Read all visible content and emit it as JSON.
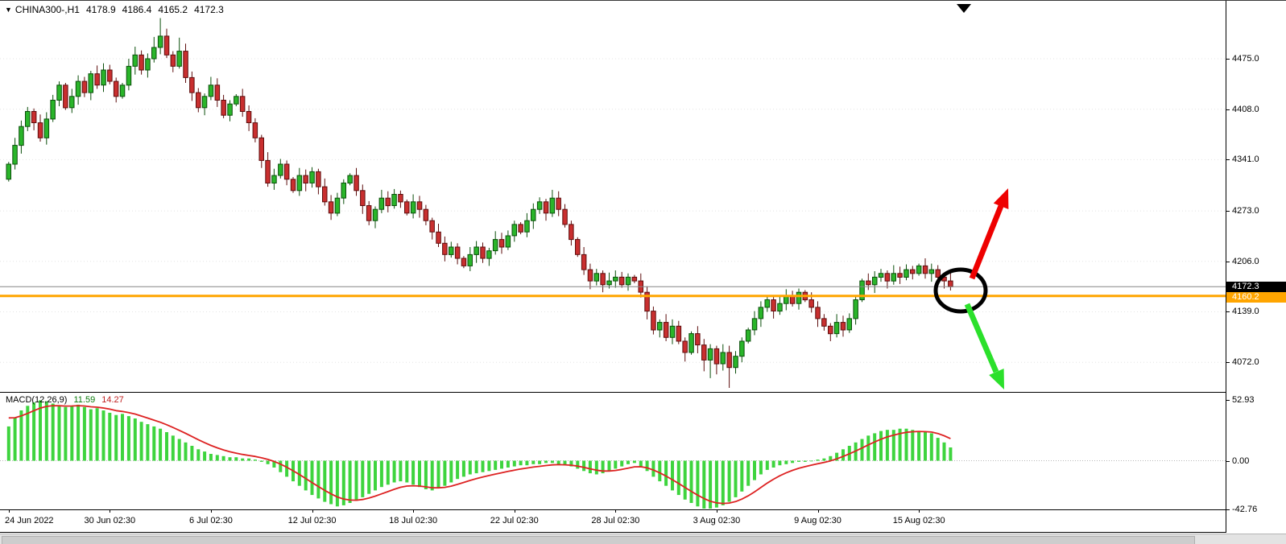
{
  "icons": {
    "dropdown": "▼",
    "scroll_anchor": "triangle-down"
  },
  "header": {
    "symbol": "CHINA300-,H1",
    "open": "4178.9",
    "high": "4186.4",
    "low": "4165.2",
    "close": "4172.3"
  },
  "price_axis": {
    "ticks": [
      "4475.0",
      "4408.0",
      "4341.0",
      "4273.0",
      "4206.0",
      "4139.0",
      "4072.0"
    ],
    "current_badge": "4172.3",
    "orange_badge": "4160.2"
  },
  "time_axis": {
    "labels": [
      "24 Jun 2022",
      "30 Jun 02:30",
      "6 Jul 02:30",
      "12 Jul 02:30",
      "18 Jul 02:30",
      "22 Jul 02:30",
      "28 Jul 02:30",
      "3 Aug 02:30",
      "9 Aug 02:30",
      "15 Aug 02:30"
    ]
  },
  "macd_panel": {
    "label": "MACD(12,26,9)",
    "macd_value": "11.59",
    "signal_value": "14.27",
    "ticks": [
      "52.93",
      "0.00",
      "-42.76"
    ]
  },
  "colors": {
    "bull_fill": "#2ab52a",
    "bull_stroke": "#0b4f0b",
    "bear_fill": "#c92f2f",
    "bear_stroke": "#5e0e0e",
    "macd_histogram": "#3ed43e",
    "macd_signal": "#dd2222",
    "orange_line": "#ffa500",
    "current_price_line": "#858585",
    "badge_current_bg": "#000000",
    "badge_current_text": "#ffffff",
    "badge_orange_bg": "#ffa500",
    "badge_orange_text": "#ffffff",
    "arrow_up": "#ee0000",
    "arrow_down": "#2be02b",
    "annotation_circle": "#000000",
    "grid": "#e4e4e4"
  },
  "chart_data": {
    "type": "candlestick",
    "title": "CHINA300-,H1",
    "timeframe": "H1",
    "header_ohlc": {
      "open": 4178.9,
      "high": 4186.4,
      "low": 4165.2,
      "close": 4172.3
    },
    "current_price": 4172.3,
    "horizontal_line_price": 4160.2,
    "y_axis_ticks": [
      4475.0,
      4408.0,
      4341.0,
      4273.0,
      4206.0,
      4139.0,
      4072.0
    ],
    "x_labels": [
      "24 Jun 2022",
      "30 Jun 02:30",
      "6 Jul 02:30",
      "12 Jul 02:30",
      "18 Jul 02:30",
      "22 Jul 02:30",
      "28 Jul 02:30",
      "3 Aug 02:30",
      "9 Aug 02:30",
      "15 Aug 02:30"
    ],
    "candles_per_x_label": 16,
    "closes": [
      4335,
      4360,
      4385,
      4405,
      4390,
      4370,
      4395,
      4420,
      4440,
      4410,
      4425,
      4445,
      4430,
      4455,
      4440,
      4460,
      4445,
      4425,
      4440,
      4465,
      4480,
      4460,
      4475,
      4490,
      4505,
      4480,
      4465,
      4485,
      4450,
      4430,
      4410,
      4425,
      4440,
      4420,
      4400,
      4415,
      4425,
      4405,
      4390,
      4370,
      4340,
      4310,
      4320,
      4335,
      4315,
      4300,
      4320,
      4310,
      4325,
      4305,
      4285,
      4270,
      4290,
      4310,
      4320,
      4300,
      4280,
      4260,
      4275,
      4290,
      4280,
      4295,
      4285,
      4270,
      4285,
      4275,
      4260,
      4245,
      4230,
      4215,
      4225,
      4210,
      4200,
      4215,
      4225,
      4210,
      4220,
      4235,
      4225,
      4240,
      4255,
      4245,
      4260,
      4275,
      4285,
      4270,
      4290,
      4275,
      4255,
      4235,
      4215,
      4195,
      4180,
      4190,
      4175,
      4180,
      4185,
      4175,
      4185,
      4180,
      4165,
      4140,
      4115,
      4125,
      4105,
      4120,
      4100,
      4085,
      4110,
      4095,
      4075,
      4090,
      4070,
      4085,
      4065,
      4080,
      4100,
      4115,
      4130,
      4145,
      4155,
      4140,
      4150,
      4160,
      4150,
      4165,
      4155,
      4145,
      4130,
      4120,
      4110,
      4125,
      4115,
      4130,
      4155,
      4180,
      4175,
      4185,
      4190,
      4180,
      4190,
      4185,
      4195,
      4190,
      4200,
      4190,
      4195,
      4185,
      4180,
      4172.3
    ],
    "annotations": [
      {
        "type": "ellipse",
        "meaning": "highlight-current-price-area",
        "color": "#000000"
      },
      {
        "type": "arrow",
        "direction": "up",
        "color": "#ee0000"
      },
      {
        "type": "arrow",
        "direction": "down",
        "color": "#2be02b"
      }
    ],
    "indicator": {
      "name": "MACD(12,26,9)",
      "macd_value": 11.59,
      "signal_value": 14.27,
      "y_ticks": [
        52.93,
        0.0,
        -42.76
      ],
      "histogram": [
        30,
        38,
        44,
        48,
        51,
        52.9,
        52,
        50,
        48,
        47,
        48,
        49,
        47,
        45,
        46,
        44,
        42,
        40,
        41,
        39,
        37,
        34,
        32,
        30,
        28,
        25,
        22,
        19,
        16,
        13,
        10,
        8,
        6,
        5,
        4,
        3,
        3,
        2,
        2,
        1,
        -1,
        -3,
        -6,
        -10,
        -14,
        -18,
        -22,
        -26,
        -30,
        -33,
        -36,
        -38,
        -40,
        -39,
        -37,
        -35,
        -32,
        -29,
        -26,
        -23,
        -21,
        -19,
        -18,
        -19,
        -21,
        -23,
        -25,
        -26,
        -24,
        -22,
        -19,
        -16,
        -14,
        -12,
        -11,
        -10,
        -9,
        -8,
        -7,
        -6,
        -5,
        -4,
        -4,
        -3,
        -3,
        -2,
        -2,
        -3,
        -4,
        -5,
        -7,
        -9,
        -11,
        -12,
        -11,
        -9,
        -7,
        -5,
        -3,
        -2,
        -5,
        -9,
        -14,
        -18,
        -22,
        -26,
        -30,
        -34,
        -37,
        -40,
        -42,
        -42.8,
        -41,
        -39,
        -36,
        -32,
        -27,
        -22,
        -17,
        -12,
        -8,
        -6,
        -4,
        -3,
        -2,
        -1,
        -1,
        0,
        1,
        2,
        4,
        7,
        10,
        13,
        16,
        19,
        22,
        24,
        26,
        27,
        27,
        28,
        28,
        27,
        26,
        25,
        24,
        20,
        16,
        11.59
      ]
    }
  }
}
